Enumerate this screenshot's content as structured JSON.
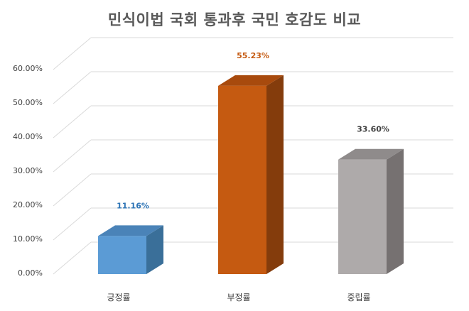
{
  "chart_data": {
    "type": "bar",
    "title": "민식이법 국회 통과후 국민 호감도 비교",
    "categories": [
      "긍정률",
      "부정률",
      "중립률"
    ],
    "values": [
      11.16,
      55.23,
      33.6
    ],
    "data_labels": [
      "11.16%",
      "55.23%",
      "33.60%"
    ],
    "ylim": [
      0,
      60
    ],
    "y_ticks": [
      0,
      10,
      20,
      30,
      40,
      50,
      60
    ],
    "y_tick_labels": [
      "0.00%",
      "10.00%",
      "20.00%",
      "30.00%",
      "40.00%",
      "50.00%",
      "60.00%"
    ],
    "grid": true,
    "style_3d": true,
    "colors": {
      "front": [
        "#5b9bd5",
        "#c55a11",
        "#aeaaaa"
      ],
      "side": [
        "#3a6f99",
        "#843c0c",
        "#767171"
      ],
      "top": [
        "#4a83b8",
        "#a84a0d",
        "#8f8b8b"
      ],
      "label": [
        "#2e75b6",
        "#c55a11",
        "#404040"
      ]
    }
  }
}
